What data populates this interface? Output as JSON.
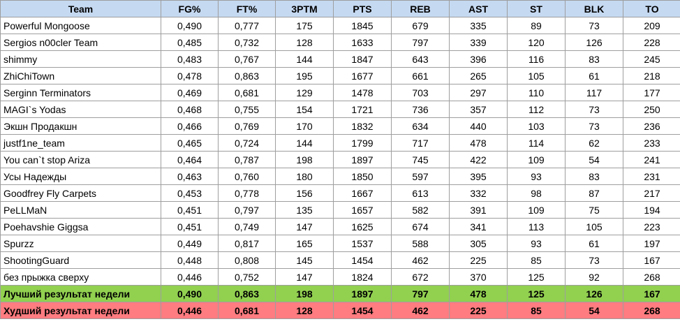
{
  "columns": [
    "Team",
    "FG%",
    "FT%",
    "3PTM",
    "PTS",
    "REB",
    "AST",
    "ST",
    "BLK",
    "TO"
  ],
  "rows": [
    [
      "Powerful Mongoose",
      "0,490",
      "0,777",
      "175",
      "1845",
      "679",
      "335",
      "89",
      "73",
      "209"
    ],
    [
      "Sergios n00cler Team",
      "0,485",
      "0,732",
      "128",
      "1633",
      "797",
      "339",
      "120",
      "126",
      "228"
    ],
    [
      "shimmy",
      "0,483",
      "0,767",
      "144",
      "1847",
      "643",
      "396",
      "116",
      "83",
      "245"
    ],
    [
      "ZhiChiTown",
      "0,478",
      "0,863",
      "195",
      "1677",
      "661",
      "265",
      "105",
      "61",
      "218"
    ],
    [
      "Serginn Terminators",
      "0,469",
      "0,681",
      "129",
      "1478",
      "703",
      "297",
      "110",
      "117",
      "177"
    ],
    [
      "MAGI`s Yodas",
      "0,468",
      "0,755",
      "154",
      "1721",
      "736",
      "357",
      "112",
      "73",
      "250"
    ],
    [
      "Экшн Продакшн",
      "0,466",
      "0,769",
      "170",
      "1832",
      "634",
      "440",
      "103",
      "73",
      "236"
    ],
    [
      "justf1ne_team",
      "0,465",
      "0,724",
      "144",
      "1799",
      "717",
      "478",
      "114",
      "62",
      "233"
    ],
    [
      "You can`t stop Ariza",
      "0,464",
      "0,787",
      "198",
      "1897",
      "745",
      "422",
      "109",
      "54",
      "241"
    ],
    [
      "Усы Надежды",
      "0,463",
      "0,760",
      "180",
      "1850",
      "597",
      "395",
      "93",
      "83",
      "231"
    ],
    [
      "Goodfrey Fly Carpets",
      "0,453",
      "0,778",
      "156",
      "1667",
      "613",
      "332",
      "98",
      "87",
      "217"
    ],
    [
      "PeLLMaN",
      "0,451",
      "0,797",
      "135",
      "1657",
      "582",
      "391",
      "109",
      "75",
      "194"
    ],
    [
      "Poehavshie Giggsa",
      "0,451",
      "0,749",
      "147",
      "1625",
      "674",
      "341",
      "113",
      "105",
      "223"
    ],
    [
      "Spurzz",
      "0,449",
      "0,817",
      "165",
      "1537",
      "588",
      "305",
      "93",
      "61",
      "197"
    ],
    [
      "ShootingGuard",
      "0,448",
      "0,808",
      "145",
      "1454",
      "462",
      "225",
      "85",
      "73",
      "167"
    ],
    [
      "без прыжка сверху",
      "0,446",
      "0,752",
      "147",
      "1824",
      "672",
      "370",
      "125",
      "92",
      "268"
    ]
  ],
  "best": [
    "Лучший результат недели",
    "0,490",
    "0,863",
    "198",
    "1897",
    "797",
    "478",
    "125",
    "126",
    "167"
  ],
  "worst": [
    "Худший результат недели",
    "0,446",
    "0,681",
    "128",
    "1454",
    "462",
    "225",
    "85",
    "54",
    "268"
  ],
  "colors": {
    "header_bg": "#c5d9f1",
    "best_bg": "#92d050",
    "worst_bg": "#ff7c80",
    "grid": "#9e9e9e"
  }
}
